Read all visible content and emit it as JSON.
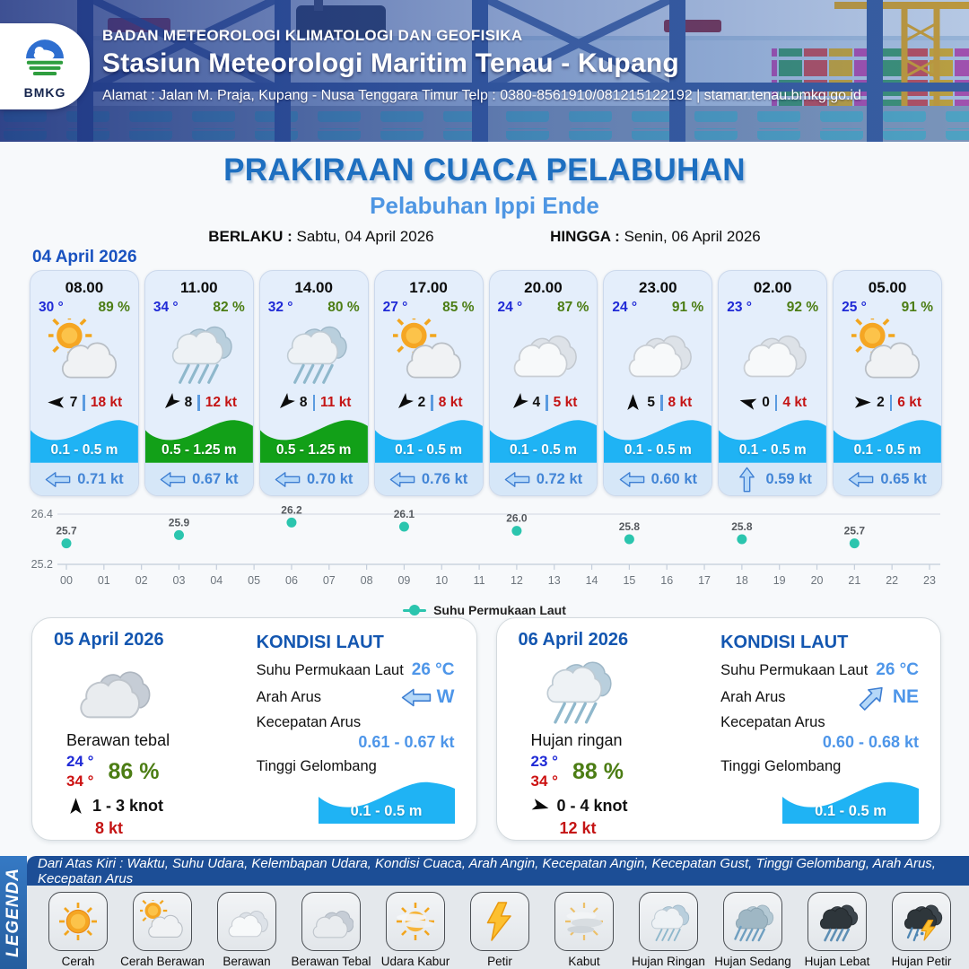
{
  "header": {
    "logo_text": "BMKG",
    "agency": "BADAN METEOROLOGI KLIMATOLOGI DAN GEOFISIKA",
    "station": "Stasiun Meteorologi Maritim Tenau - Kupang",
    "address": "Alamat : Jalan M. Praja, Kupang - Nusa Tenggara Timur Telp : 0380-8561910/081215122192  | stamar.tenau.bmkg.go.id"
  },
  "title": {
    "main": "PRAKIRAAN CUACA PELABUHAN",
    "port": "Pelabuhan Ippi Ende",
    "valid_from_label": "BERLAKU :",
    "valid_from": "Sabtu, 04 April 2026",
    "valid_to_label": "HINGGA :",
    "valid_to": "Senin, 06 April 2026"
  },
  "forecast_day1": {
    "date": "04 April 2026",
    "cards": [
      {
        "time": "08.00",
        "temp": "30 °",
        "humidity": "89 %",
        "icon": "cerah-berawan",
        "wind_speed": "7",
        "gust": "18 kt",
        "wind_deg": 180,
        "wave": "0.1 - 0.5 m",
        "wave_color": "#1fb3f4",
        "current": "0.71 kt",
        "current_deg": 0
      },
      {
        "time": "11.00",
        "temp": "34 °",
        "humidity": "82 %",
        "icon": "hujan-ringan",
        "wind_speed": "8",
        "gust": "12 kt",
        "wind_deg": 135,
        "wave": "0.5 - 1.25 m",
        "wave_color": "#12a018",
        "current": "0.67 kt",
        "current_deg": 0
      },
      {
        "time": "14.00",
        "temp": "32 °",
        "humidity": "80 %",
        "icon": "hujan-ringan",
        "wind_speed": "8",
        "gust": "11 kt",
        "wind_deg": 135,
        "wave": "0.5 - 1.25 m",
        "wave_color": "#12a018",
        "current": "0.70 kt",
        "current_deg": 0
      },
      {
        "time": "17.00",
        "temp": "27 °",
        "humidity": "85 %",
        "icon": "cerah-berawan",
        "wind_speed": "2",
        "gust": "8 kt",
        "wind_deg": 135,
        "wave": "0.1 - 0.5 m",
        "wave_color": "#1fb3f4",
        "current": "0.76 kt",
        "current_deg": 0
      },
      {
        "time": "20.00",
        "temp": "24 °",
        "humidity": "87 %",
        "icon": "berawan",
        "wind_speed": "4",
        "gust": "5 kt",
        "wind_deg": 135,
        "wave": "0.1 - 0.5 m",
        "wave_color": "#1fb3f4",
        "current": "0.72 kt",
        "current_deg": 0
      },
      {
        "time": "23.00",
        "temp": "24 °",
        "humidity": "91 %",
        "icon": "berawan",
        "wind_speed": "5",
        "gust": "8 kt",
        "wind_deg": 270,
        "wave": "0.1 - 0.5 m",
        "wave_color": "#1fb3f4",
        "current": "0.60 kt",
        "current_deg": 0
      },
      {
        "time": "02.00",
        "temp": "23 °",
        "humidity": "92 %",
        "icon": "berawan",
        "wind_speed": "0",
        "gust": "4 kt",
        "wind_deg": 195,
        "wave": "0.1 - 0.5 m",
        "wave_color": "#1fb3f4",
        "current": "0.59 kt",
        "current_deg": 90
      },
      {
        "time": "05.00",
        "temp": "25 °",
        "humidity": "91 %",
        "icon": "cerah-berawan",
        "wind_speed": "2",
        "gust": "6 kt",
        "wind_deg": 0,
        "wave": "0.1 - 0.5 m",
        "wave_color": "#1fb3f4",
        "current": "0.65 kt",
        "current_deg": 0
      }
    ]
  },
  "chart_data": {
    "type": "scatter",
    "title": "",
    "legend": "Suhu Permukaan Laut",
    "x": [
      0,
      3,
      6,
      9,
      12,
      15,
      18,
      21
    ],
    "values": [
      25.7,
      25.9,
      26.2,
      26.1,
      26.0,
      25.8,
      25.8,
      25.7
    ],
    "x_ticks": [
      "00",
      "01",
      "02",
      "03",
      "04",
      "05",
      "06",
      "07",
      "08",
      "09",
      "10",
      "11",
      "12",
      "13",
      "14",
      "15",
      "16",
      "17",
      "18",
      "19",
      "20",
      "21",
      "22",
      "23"
    ],
    "y_ticks": [
      "26.4",
      "25.2"
    ],
    "ylim": [
      25.2,
      26.4
    ],
    "color": "#2bc5ae",
    "grid": "top-and-bottom-lines",
    "legend_position": "bottom-center"
  },
  "day_cards": [
    {
      "date": "05 April 2026",
      "icon": "berawan-tebal",
      "condition": "Berawan tebal",
      "temp_min": "24 °",
      "temp_max": "34 °",
      "humidity": "86 %",
      "wind_range": "1  - 3 knot",
      "wind_deg": 270,
      "gust": "8 kt",
      "sea": {
        "heading": "KONDISI LAUT",
        "sst_label": "Suhu Permukaan Laut",
        "sst": "26 °C",
        "current_dir_label": "Arah Arus",
        "current_dir": "W",
        "current_dir_deg": 0,
        "current_speed_label": "Kecepatan Arus",
        "current_speed": "0.61 - 0.67 kt",
        "wave_label": "Tinggi Gelombang",
        "wave": "0.1 - 0.5 m",
        "wave_color": "#1fb3f4"
      }
    },
    {
      "date": "06 April 2026",
      "icon": "hujan-ringan",
      "condition": "Hujan ringan",
      "temp_min": "23 °",
      "temp_max": "34 °",
      "humidity": "88 %",
      "wind_range": "0  - 4 knot",
      "wind_deg": 15,
      "gust": "12 kt",
      "sea": {
        "heading": "KONDISI LAUT",
        "sst_label": "Suhu Permukaan Laut",
        "sst": "26 °C",
        "current_dir_label": "Arah Arus",
        "current_dir": "NE",
        "current_dir_deg": 135,
        "current_speed_label": "Kecepatan Arus",
        "current_speed": "0.60 - 0.68 kt",
        "wave_label": "Tinggi Gelombang",
        "wave": "0.1 - 0.5 m",
        "wave_color": "#1fb3f4"
      }
    }
  ],
  "legend": {
    "title": "LEGENDA",
    "description": "Dari Atas Kiri : Waktu, Suhu Udara, Kelembapan Udara, Kondisi Cuaca, Arah Angin, Kecepatan Angin, Kecepatan Gust, Tinggi Gelombang, Arah Arus, Kecepatan Arus",
    "items": [
      {
        "label": "Cerah",
        "icon": "cerah"
      },
      {
        "label": "Cerah Berawan",
        "icon": "cerah-berawan"
      },
      {
        "label": "Berawan",
        "icon": "berawan"
      },
      {
        "label": "Berawan Tebal",
        "icon": "berawan-tebal"
      },
      {
        "label": "Udara Kabur",
        "icon": "udara-kabur"
      },
      {
        "label": "Petir",
        "icon": "petir"
      },
      {
        "label": "Kabut",
        "icon": "kabut"
      },
      {
        "label": "Hujan Ringan",
        "icon": "hujan-ringan"
      },
      {
        "label": "Hujan Sedang",
        "icon": "hujan-sedang"
      },
      {
        "label": "Hujan Lebat",
        "icon": "hujan-lebat"
      },
      {
        "label": "Hujan Petir",
        "icon": "hujan-petir"
      }
    ]
  }
}
